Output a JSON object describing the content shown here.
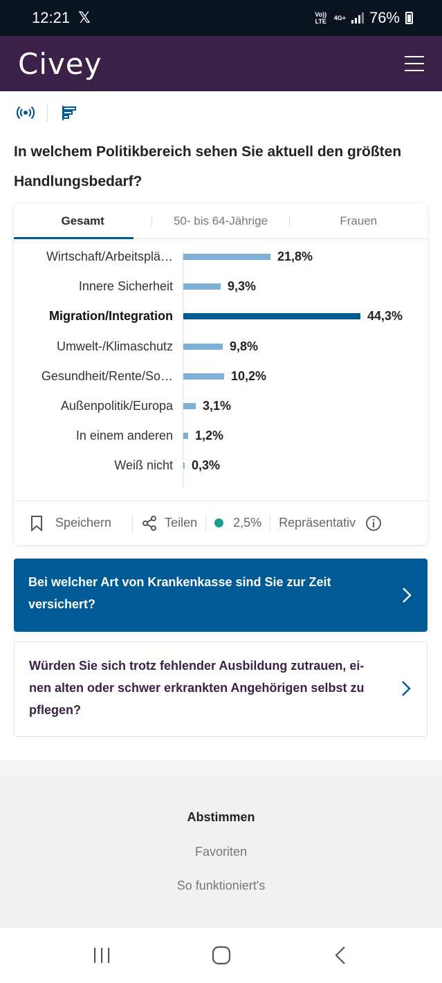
{
  "status_bar": {
    "time": "12:21",
    "volte": "Vo)) LTE",
    "network": "4G+",
    "battery": "76%"
  },
  "app": {
    "logo": "Civey"
  },
  "question": "In welchem Politikbereich sehen Sie aktuell den größten Handlungsbedarf?",
  "tabs": [
    {
      "label": "Gesamt"
    },
    {
      "label": "50- bis 64-Jährige"
    },
    {
      "label": "Frauen"
    }
  ],
  "chart_data": {
    "type": "bar",
    "orientation": "horizontal",
    "unit": "%",
    "categories": [
      "Wirtschaft/Arbeitsplä…",
      "Innere Sicherheit",
      "Migration/Integration",
      "Umwelt-/Klimaschutz",
      "Gesundheit/Rente/So…",
      "Außenpolitik/Europa",
      "In einem anderen",
      "Weiß nicht"
    ],
    "values": [
      21.8,
      9.3,
      44.3,
      9.8,
      10.2,
      3.1,
      1.2,
      0.3
    ],
    "value_labels": [
      "21,8%",
      "9,3%",
      "44,3%",
      "9,8%",
      "10,2%",
      "3,1%",
      "1,2%",
      "0,3%"
    ],
    "highlighted": "Migration/Integration",
    "colors": {
      "bar": "#7fb0d6",
      "highlight": "#005a96"
    }
  },
  "card_footer": {
    "save": "Speichern",
    "share": "Teilen",
    "margin": "2,5%",
    "representative": "Repräsentativ"
  },
  "related": [
    {
      "text": "Bei welcher Art von Krankenkasse sind Sie zur Zeit versichert?"
    },
    {
      "text": "Würden Sie sich trotz fehlender Ausbildung zutrauen, ei-nen alten oder schwer erkrankten Angehörigen selbst zu pflegen?"
    }
  ],
  "footer": {
    "vote": "Abstimmen",
    "favorites": "Favoriten",
    "how": "So funktioniert's"
  },
  "colors": {
    "header": "#3b2148",
    "accent": "#005a96",
    "statusbar": "#0a1420"
  }
}
